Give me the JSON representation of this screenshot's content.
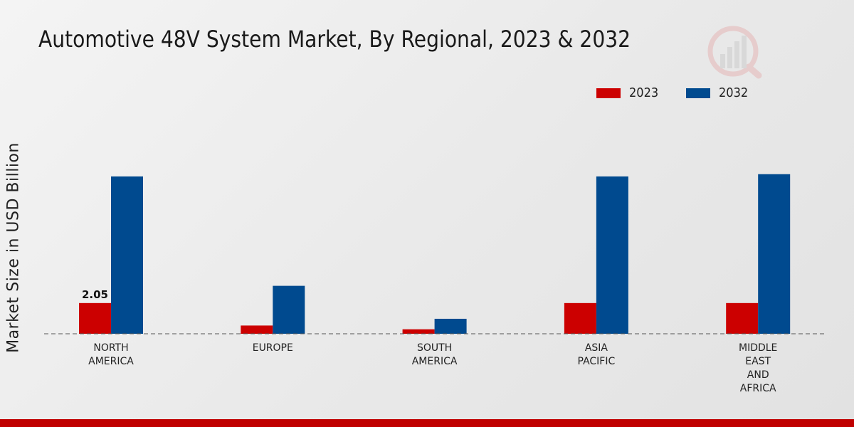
{
  "chart_data": {
    "type": "bar",
    "title": "Automotive 48V System Market, By Regional, 2023 & 2032",
    "xlabel": "",
    "ylabel": "Market Size in USD Billion",
    "categories": [
      "NORTH\nAMERICA",
      "EUROPE",
      "SOUTH\nAMERICA",
      "ASIA\nPACIFIC",
      "MIDDLE\nEAST\nAND\nAFRICA"
    ],
    "series": [
      {
        "name": "2023",
        "color": "#cc0000",
        "values": [
          2.05,
          0.55,
          0.3,
          2.05,
          2.05
        ]
      },
      {
        "name": "2032",
        "color": "#004a8f",
        "values": [
          10.5,
          3.2,
          1.0,
          10.5,
          10.65
        ]
      }
    ],
    "data_labels": [
      {
        "series": 0,
        "index": 0,
        "text": "2.05"
      }
    ],
    "ylim": [
      0,
      18
    ],
    "grid": false,
    "legend_position": "top-right"
  },
  "colors": {
    "footer": "#c00000"
  },
  "icons": {
    "logo": "analytics-logo-icon"
  }
}
